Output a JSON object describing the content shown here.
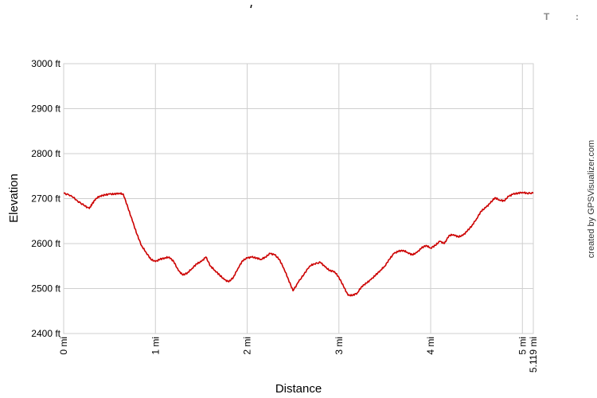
{
  "header": {
    "mark_left": "T",
    "mark_right": ":"
  },
  "credit": "created by GPSVisualizer.com",
  "chart_data": {
    "type": "line",
    "xlabel": "Distance",
    "ylabel": "Elevation",
    "xlim": [
      0,
      5.119
    ],
    "ylim": [
      2400,
      3000
    ],
    "grid": true,
    "x_ticks": [
      "0 mi",
      "1 mi",
      "2 mi",
      "3 mi",
      "4 mi",
      "5 mi"
    ],
    "x_end_label": "5.119 mi",
    "y_ticks": [
      "2400 ft",
      "2500 ft",
      "2600 ft",
      "2700 ft",
      "2800 ft",
      "2900 ft",
      "3000 ft"
    ],
    "series": [
      {
        "color": "#cc0000",
        "x": [
          0,
          0.08,
          0.15,
          0.22,
          0.28,
          0.31,
          0.35,
          0.4,
          0.45,
          0.5,
          0.55,
          0.6,
          0.65,
          0.7,
          0.75,
          0.8,
          0.85,
          0.9,
          0.95,
          1.0,
          1.05,
          1.1,
          1.15,
          1.2,
          1.25,
          1.3,
          1.35,
          1.4,
          1.45,
          1.5,
          1.55,
          1.6,
          1.65,
          1.7,
          1.75,
          1.8,
          1.85,
          1.9,
          1.95,
          2.0,
          2.05,
          2.1,
          2.15,
          2.2,
          2.25,
          2.3,
          2.35,
          2.4,
          2.45,
          2.5,
          2.56,
          2.62,
          2.68,
          2.73,
          2.8,
          2.85,
          2.9,
          2.95,
          3.0,
          3.05,
          3.1,
          3.15,
          3.2,
          3.25,
          3.3,
          3.35,
          3.4,
          3.45,
          3.5,
          3.55,
          3.6,
          3.65,
          3.7,
          3.75,
          3.8,
          3.85,
          3.9,
          3.95,
          4.0,
          4.05,
          4.1,
          4.15,
          4.2,
          4.25,
          4.3,
          4.35,
          4.4,
          4.45,
          4.5,
          4.55,
          4.6,
          4.65,
          4.7,
          4.75,
          4.8,
          4.85,
          4.9,
          4.95,
          5.0,
          5.05,
          5.119
        ],
        "y": [
          2712,
          2707,
          2695,
          2685,
          2678,
          2688,
          2700,
          2706,
          2708,
          2710,
          2710,
          2712,
          2710,
          2680,
          2650,
          2620,
          2595,
          2580,
          2565,
          2560,
          2565,
          2568,
          2570,
          2560,
          2540,
          2530,
          2535,
          2545,
          2555,
          2560,
          2570,
          2550,
          2540,
          2530,
          2520,
          2515,
          2525,
          2545,
          2562,
          2568,
          2570,
          2568,
          2565,
          2570,
          2578,
          2575,
          2565,
          2545,
          2520,
          2495,
          2515,
          2532,
          2550,
          2555,
          2558,
          2548,
          2540,
          2538,
          2525,
          2505,
          2485,
          2485,
          2490,
          2505,
          2512,
          2520,
          2530,
          2540,
          2550,
          2565,
          2578,
          2583,
          2585,
          2580,
          2575,
          2580,
          2590,
          2596,
          2590,
          2596,
          2605,
          2600,
          2618,
          2620,
          2615,
          2618,
          2628,
          2640,
          2655,
          2672,
          2680,
          2690,
          2702,
          2697,
          2695,
          2705,
          2710,
          2712,
          2714,
          2712,
          2712
        ]
      }
    ]
  }
}
